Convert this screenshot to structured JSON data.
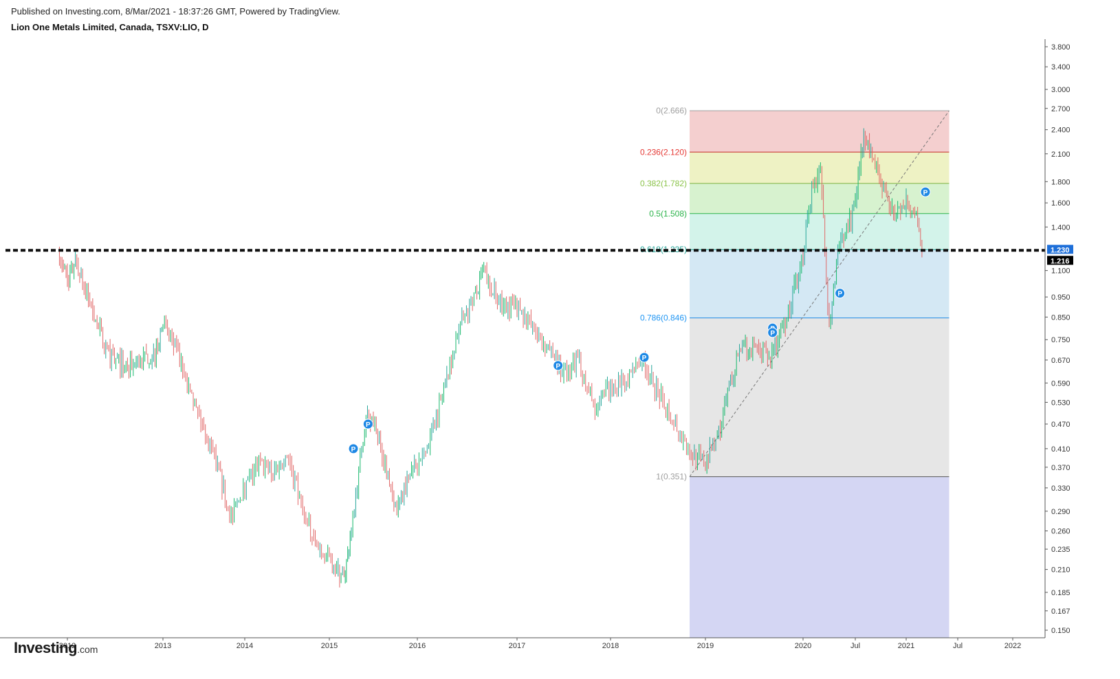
{
  "header": {
    "published": "Published on Investing.com, 8/Mar/2021 - 18:37:26 GMT, Powered by TradingView.",
    "symbol": "Lion One Metals Limited, Canada, TSXV:LIO, D"
  },
  "logo": {
    "brand": "Investing",
    "suffix": ".com"
  },
  "colors": {
    "up": "#26a69a",
    "up_bright": "#12b76a",
    "down": "#e06666",
    "fib_0": "#9e9e9e",
    "fib_236": "#e53935",
    "fib_382": "#8bc34a",
    "fib_5": "#2bb34a",
    "fib_618": "#26a69a",
    "fib_786": "#2196f3",
    "fib_1": "#9e9e9e",
    "marker": "#1e88e5",
    "price_tag": "#1e6fd9"
  },
  "chart_data": {
    "type": "candlestick",
    "scale": "log",
    "y_ticks": [
      "3.800",
      "3.400",
      "3.000",
      "2.700",
      "2.400",
      "2.100",
      "1.800",
      "1.600",
      "1.400",
      "1.230",
      "1.216",
      "1.100",
      "0.950",
      "0.850",
      "0.750",
      "0.670",
      "0.590",
      "0.530",
      "0.470",
      "0.410",
      "0.370",
      "0.330",
      "0.290",
      "0.260",
      "0.235",
      "0.210",
      "0.185",
      "0.167",
      "0.150"
    ],
    "x_ticks": [
      "2012",
      "2013",
      "2014",
      "2015",
      "2016",
      "2017",
      "2018",
      "2019",
      "2020",
      "Jul",
      "2021",
      "Jul",
      "2022"
    ],
    "last_price": "1.216",
    "marked_price": "1.230",
    "support_line": 1.23,
    "fib_levels": [
      {
        "label": "0(2.666)",
        "ratio": 0,
        "price": 2.666
      },
      {
        "label": "0.236(2.120)",
        "ratio": 0.236,
        "price": 2.12
      },
      {
        "label": "0.382(1.782)",
        "ratio": 0.382,
        "price": 1.782
      },
      {
        "label": "0.5(1.508)",
        "ratio": 0.5,
        "price": 1.508
      },
      {
        "label": "0.618(1.235)",
        "ratio": 0.618,
        "price": 1.235
      },
      {
        "label": "0.786(0.846)",
        "ratio": 0.786,
        "price": 0.846
      },
      {
        "label": "1(0.351)",
        "ratio": 1,
        "price": 0.351
      }
    ],
    "fib_start_date": "2018-11",
    "fib_end_date": "2021-06",
    "trend_line": {
      "from": {
        "date": "2018-11",
        "price": 0.351
      },
      "to": {
        "date": "2021-06",
        "price": 2.666
      }
    },
    "price_path": [
      [
        "2011-12",
        1.2
      ],
      [
        "2012-01",
        1.05
      ],
      [
        "2012-02",
        1.15
      ],
      [
        "2012-04",
        0.9
      ],
      [
        "2012-06",
        0.7
      ],
      [
        "2012-08",
        0.65
      ],
      [
        "2012-10",
        0.66
      ],
      [
        "2012-12",
        0.7
      ],
      [
        "2013-01",
        0.82
      ],
      [
        "2013-03",
        0.7
      ],
      [
        "2013-05",
        0.55
      ],
      [
        "2013-07",
        0.46
      ],
      [
        "2013-09",
        0.37
      ],
      [
        "2013-11",
        0.28
      ],
      [
        "2014-01",
        0.33
      ],
      [
        "2014-03",
        0.38
      ],
      [
        "2014-05",
        0.36
      ],
      [
        "2014-07",
        0.4
      ],
      [
        "2014-09",
        0.3
      ],
      [
        "2014-11",
        0.24
      ],
      [
        "2015-01",
        0.22
      ],
      [
        "2015-03",
        0.2
      ],
      [
        "2015-04",
        0.26
      ],
      [
        "2015-06",
        0.5
      ],
      [
        "2015-08",
        0.42
      ],
      [
        "2015-10",
        0.3
      ],
      [
        "2015-12",
        0.36
      ],
      [
        "2016-02",
        0.4
      ],
      [
        "2016-04",
        0.55
      ],
      [
        "2016-06",
        0.8
      ],
      [
        "2016-08",
        0.95
      ],
      [
        "2016-09",
        1.1
      ],
      [
        "2016-11",
        0.92
      ],
      [
        "2017-01",
        0.9
      ],
      [
        "2017-03",
        0.8
      ],
      [
        "2017-05",
        0.72
      ],
      [
        "2017-07",
        0.62
      ],
      [
        "2017-09",
        0.67
      ],
      [
        "2017-11",
        0.5
      ],
      [
        "2018-01",
        0.58
      ],
      [
        "2018-03",
        0.6
      ],
      [
        "2018-05",
        0.68
      ],
      [
        "2018-07",
        0.56
      ],
      [
        "2018-09",
        0.48
      ],
      [
        "2018-11",
        0.4
      ],
      [
        "2019-01",
        0.38
      ],
      [
        "2019-03",
        0.47
      ],
      [
        "2019-05",
        0.7
      ],
      [
        "2019-07",
        0.72
      ],
      [
        "2019-09",
        0.68
      ],
      [
        "2019-11",
        0.85
      ],
      [
        "2020-01",
        1.2
      ],
      [
        "2020-02",
        1.7
      ],
      [
        "2020-03",
        1.95
      ],
      [
        "2020-04",
        0.8
      ],
      [
        "2020-05",
        1.25
      ],
      [
        "2020-06",
        1.35
      ],
      [
        "2020-07",
        1.6
      ],
      [
        "2020-08",
        2.4
      ],
      [
        "2020-09",
        2.05
      ],
      [
        "2020-10",
        1.8
      ],
      [
        "2020-11",
        1.6
      ],
      [
        "2020-12",
        1.5
      ],
      [
        "2021-01",
        1.65
      ],
      [
        "2021-02",
        1.5
      ],
      [
        "2021-03",
        1.22
      ]
    ],
    "markers": [
      {
        "date": "2015-04",
        "price": 0.41,
        "label": "P"
      },
      {
        "date": "2015-06",
        "price": 0.47,
        "label": "P"
      },
      {
        "date": "2017-06",
        "price": 0.65,
        "label": "P"
      },
      {
        "date": "2018-05",
        "price": 0.68,
        "label": "P"
      },
      {
        "date": "2019-09",
        "price": 0.8,
        "label": "P"
      },
      {
        "date": "2019-09",
        "price": 0.78,
        "label": "P"
      },
      {
        "date": "2020-05",
        "price": 0.97,
        "label": "P"
      },
      {
        "date": "2021-03",
        "price": 1.7,
        "label": "P"
      }
    ]
  }
}
